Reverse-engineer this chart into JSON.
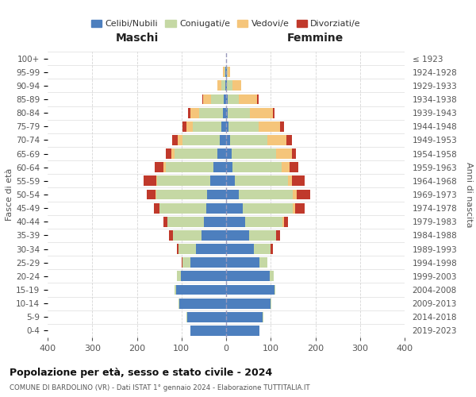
{
  "age_groups": [
    "0-4",
    "5-9",
    "10-14",
    "15-19",
    "20-24",
    "25-29",
    "30-34",
    "35-39",
    "40-44",
    "45-49",
    "50-54",
    "55-59",
    "60-64",
    "65-69",
    "70-74",
    "75-79",
    "80-84",
    "85-89",
    "90-94",
    "95-99",
    "100+"
  ],
  "birth_years": [
    "2019-2023",
    "2014-2018",
    "2009-2013",
    "2004-2008",
    "1999-2003",
    "1994-1998",
    "1989-1993",
    "1984-1988",
    "1979-1983",
    "1974-1978",
    "1969-1973",
    "1964-1968",
    "1959-1963",
    "1954-1958",
    "1949-1953",
    "1944-1948",
    "1939-1943",
    "1934-1938",
    "1929-1933",
    "1924-1928",
    "≤ 1923"
  ],
  "colors": {
    "celibi": "#4d7fbe",
    "coniugati": "#c5d8a4",
    "vedovi": "#f5c57a",
    "divorziati": "#c0392b"
  },
  "males": {
    "celibi": [
      80,
      88,
      105,
      112,
      102,
      80,
      68,
      55,
      50,
      45,
      42,
      35,
      28,
      20,
      15,
      10,
      8,
      5,
      2,
      1,
      0
    ],
    "coniugati": [
      0,
      1,
      2,
      3,
      8,
      18,
      38,
      65,
      82,
      105,
      115,
      120,
      108,
      95,
      82,
      65,
      52,
      28,
      8,
      2,
      0
    ],
    "vedovi": [
      0,
      0,
      0,
      0,
      0,
      0,
      0,
      0,
      0,
      0,
      2,
      2,
      4,
      8,
      12,
      14,
      20,
      18,
      10,
      4,
      0
    ],
    "divorziati": [
      0,
      0,
      0,
      0,
      0,
      2,
      4,
      8,
      8,
      12,
      18,
      28,
      20,
      12,
      12,
      8,
      5,
      2,
      0,
      0,
      0
    ]
  },
  "females": {
    "nubili": [
      75,
      82,
      100,
      108,
      98,
      75,
      62,
      52,
      42,
      38,
      28,
      20,
      15,
      12,
      8,
      5,
      4,
      3,
      2,
      1,
      0
    ],
    "coniugate": [
      0,
      1,
      2,
      3,
      8,
      18,
      38,
      60,
      85,
      112,
      122,
      118,
      110,
      100,
      85,
      68,
      50,
      25,
      12,
      3,
      0
    ],
    "vedove": [
      0,
      0,
      0,
      0,
      0,
      0,
      0,
      0,
      2,
      4,
      8,
      10,
      18,
      35,
      42,
      48,
      50,
      42,
      20,
      5,
      0
    ],
    "divorziate": [
      0,
      0,
      0,
      0,
      0,
      0,
      5,
      8,
      10,
      22,
      30,
      28,
      18,
      10,
      12,
      8,
      5,
      2,
      0,
      0,
      0
    ]
  },
  "title": "Popolazione per età, sesso e stato civile - 2024",
  "subtitle": "COMUNE DI BARDOLINO (VR) - Dati ISTAT 1° gennaio 2024 - Elaborazione TUTTITALIA.IT",
  "label_maschi": "Maschi",
  "label_femmine": "Femmine",
  "ylabel_left": "Fasce di età",
  "ylabel_right": "Anni di nascita",
  "xlim": 400,
  "legend_labels": [
    "Celibi/Nubili",
    "Coniugati/e",
    "Vedovi/e",
    "Divorziati/e"
  ],
  "bg_color": "#ffffff",
  "grid_color": "#cccccc"
}
